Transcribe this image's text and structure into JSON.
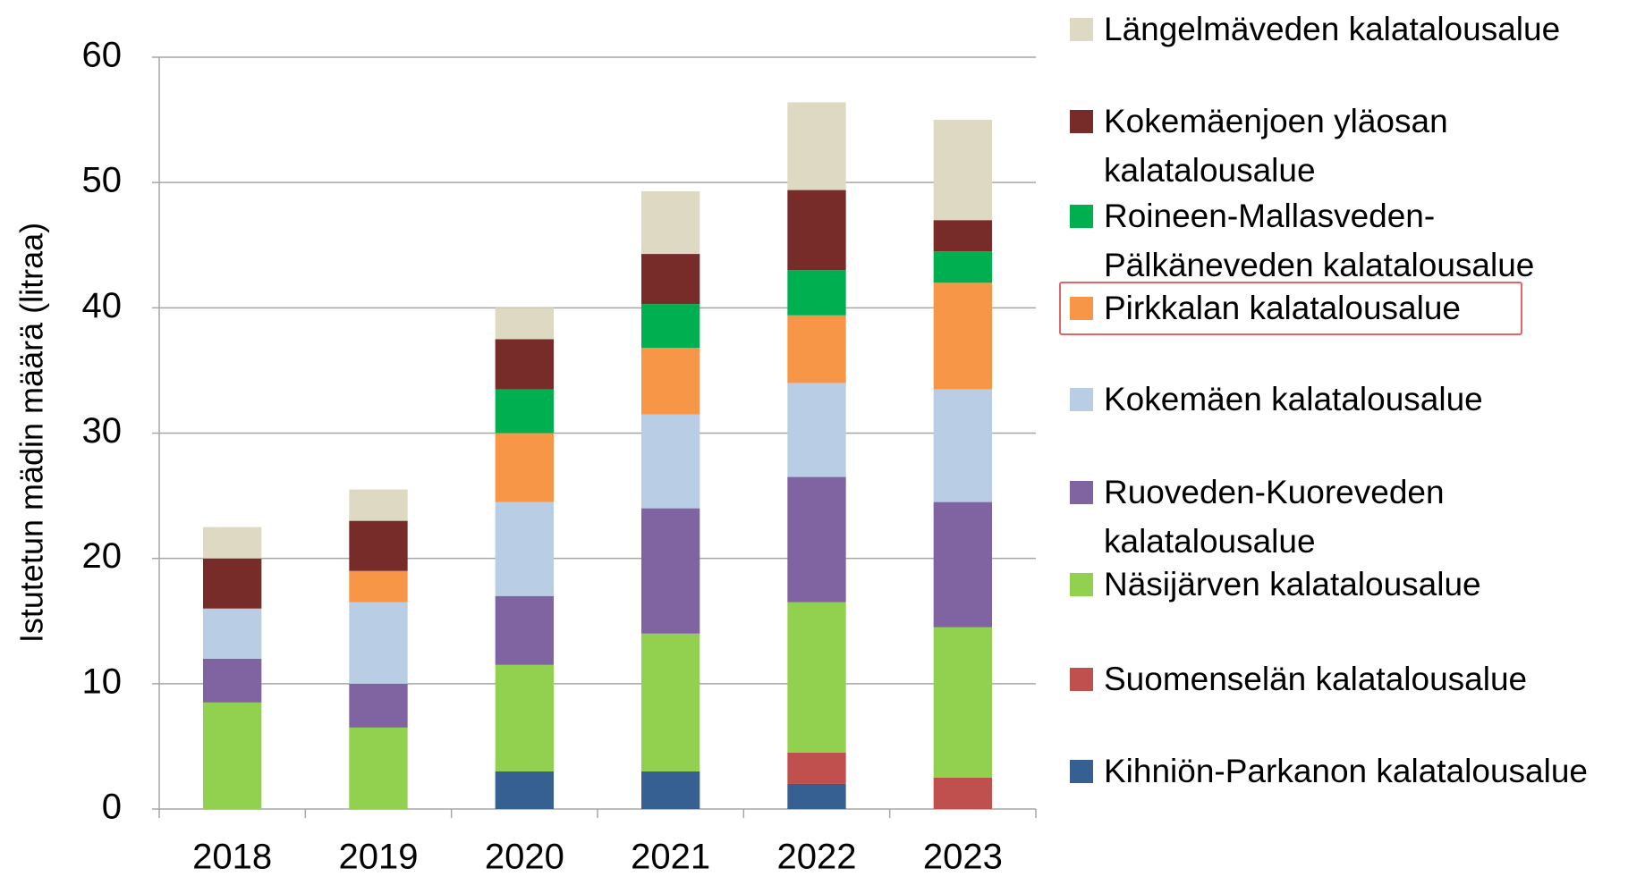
{
  "chart_data": {
    "type": "stacked_bar",
    "y_label": "Istutetun mädin määrä (litraa)",
    "categories": [
      "2018",
      "2019",
      "2020",
      "2021",
      "2022",
      "2023"
    ],
    "ylim": [
      0,
      60
    ],
    "yticks": [
      0,
      10,
      20,
      30,
      40,
      50,
      60
    ],
    "grid": true,
    "series": [
      {
        "name": "Kihniön-Parkanon kalatalousalue",
        "color": "#376092",
        "values": [
          0,
          0,
          3,
          3,
          2,
          0
        ]
      },
      {
        "name": "Suomenselän kalatalousalue",
        "color": "#c0504d",
        "values": [
          0,
          0,
          0,
          0,
          2.5,
          2.5
        ]
      },
      {
        "name": "Näsijärven kalatalousalue",
        "color": "#92d050",
        "values": [
          8.5,
          6.5,
          8.5,
          11,
          12,
          12
        ]
      },
      {
        "name": "Ruoveden-Kuoreveden kalatalousalue",
        "color": "#8064a2",
        "values": [
          3.5,
          3.5,
          5.5,
          10,
          10,
          10
        ]
      },
      {
        "name": "Kokemäen kalatalousalue",
        "color": "#b9cde5",
        "values": [
          4,
          6.5,
          7.5,
          7.5,
          7.5,
          9
        ]
      },
      {
        "name": "Pirkkalan kalatalousalue",
        "color": "#f79646",
        "values": [
          0,
          2.5,
          5.5,
          5.3,
          5.4,
          8.5
        ]
      },
      {
        "name": "Roineen-Mallasveden-Pälkäneveden kalatalousalue",
        "color": "#00b050",
        "values": [
          0,
          0,
          3.5,
          3.5,
          3.6,
          2.5
        ]
      },
      {
        "name": "Kokemäenjoen yläosan kalatalousalue",
        "color": "#772c2a",
        "values": [
          4,
          4,
          4,
          4,
          6.4,
          2.5
        ]
      },
      {
        "name": "Längelmäveden kalatalousalue",
        "color": "#ddd9c3",
        "values": [
          2.5,
          2.5,
          2.5,
          5,
          7,
          8
        ]
      }
    ]
  }
}
